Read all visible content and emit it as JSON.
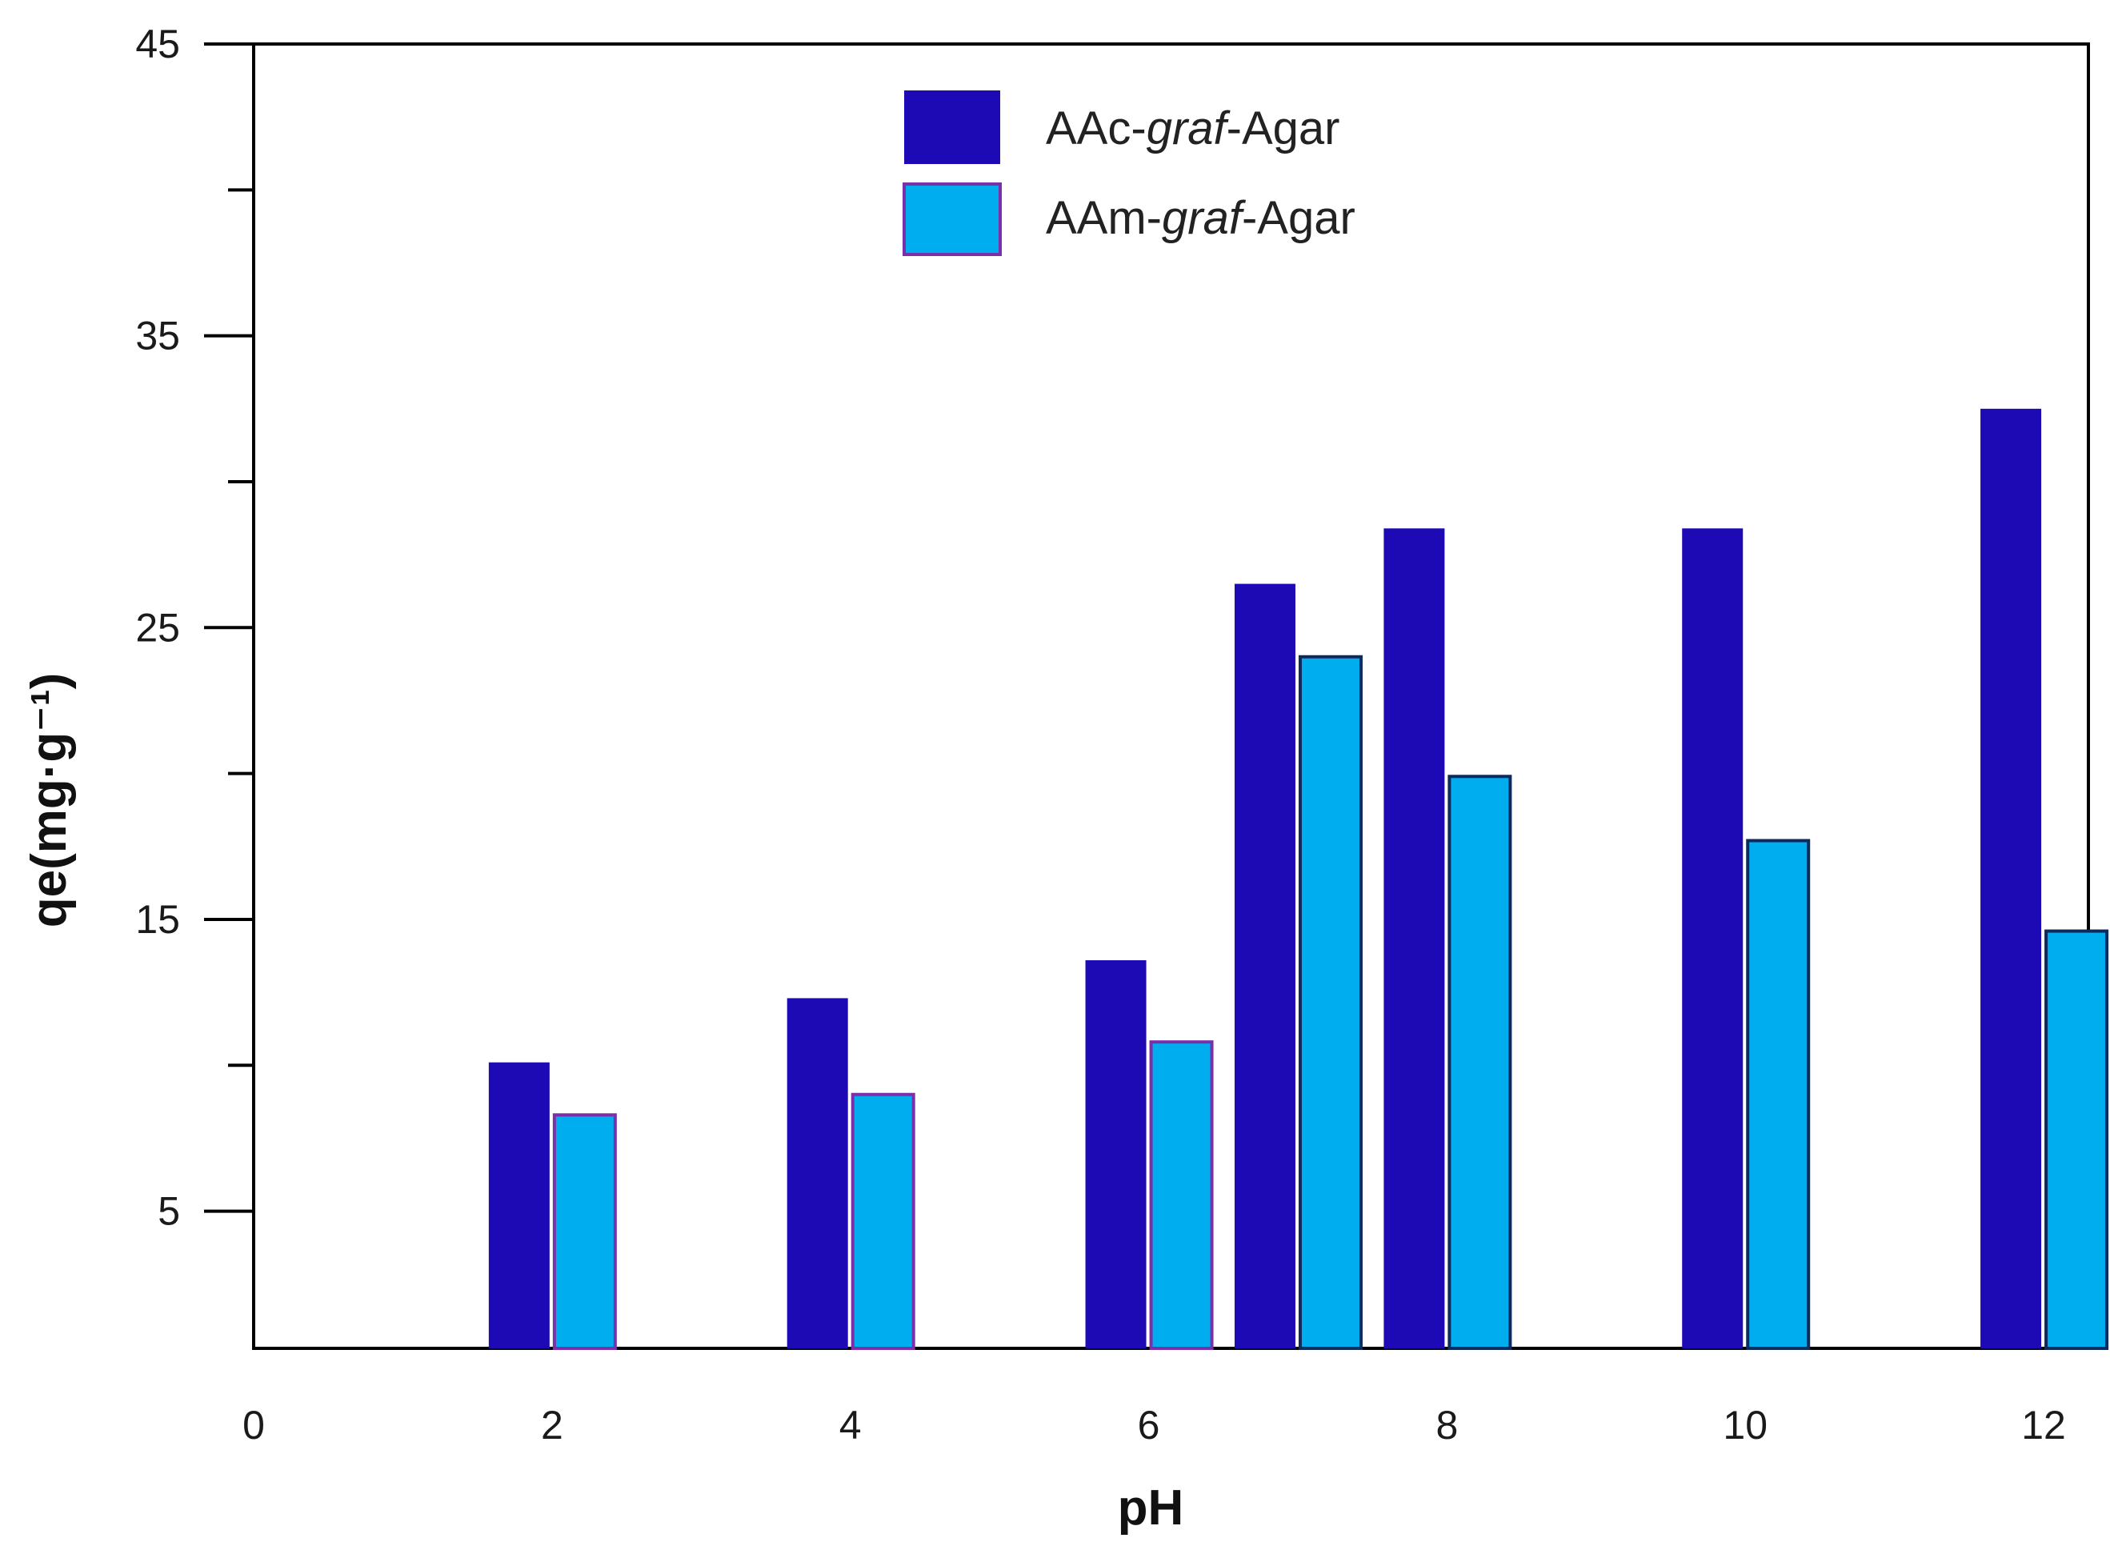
{
  "chart_data": {
    "type": "bar",
    "xlabel": "pH",
    "ylabel": "qe(mg·g⁻¹)",
    "x_ticks": [
      "0",
      "2",
      "4",
      "6",
      "8",
      "10",
      "12"
    ],
    "y_ticks": [
      "5",
      "15",
      "25",
      "35",
      "45"
    ],
    "xlim": [
      0,
      12.3
    ],
    "ylim": [
      0.3,
      45
    ],
    "grid": false,
    "legend_position": "top-center",
    "series": [
      {
        "name": "AAc-graf-Agar",
        "legend_parts": [
          "AAc-",
          "graf",
          "-Agar"
        ],
        "color": "#1d0ab5",
        "x": [
          2,
          4,
          6,
          7,
          8,
          10,
          12
        ],
        "values": [
          10.1,
          12.3,
          13.6,
          26.5,
          28.4,
          28.4,
          32.5
        ]
      },
      {
        "name": "AAm-graf-Agar",
        "legend_parts": [
          "AAm-",
          "graf",
          "-Agar"
        ],
        "color": "#00adef",
        "x": [
          2,
          4,
          6,
          7,
          8,
          10,
          12
        ],
        "values": [
          8.3,
          9.0,
          10.8,
          24.0,
          19.9,
          17.7,
          14.6
        ]
      }
    ]
  }
}
